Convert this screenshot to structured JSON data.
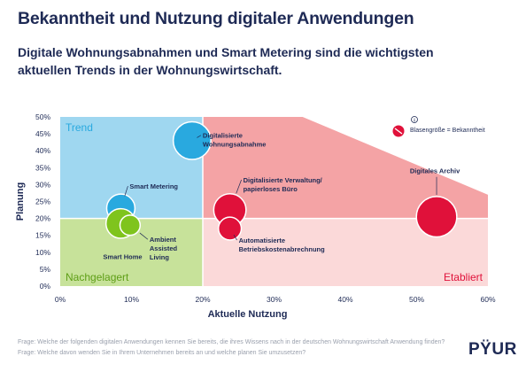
{
  "title": "Bekanntheit und Nutzung digitaler Anwendungen",
  "subtitle": "Digitale Wohnungsabnahmen und Smart Metering sind die wichtigsten aktuellen Trends in der Wohnungswirtschaft.",
  "footnotes": [
    "Frage: Welche der folgenden digitalen Anwendungen kennen Sie bereits, die ihres Wissens nach in der deutschen Wohnungswirtschaft Anwendung finden?",
    "Frage: Welche davon wenden Sie in Ihrem Unternehmen bereits an und welche planen Sie umzusetzen?"
  ],
  "logo": "PŸUR",
  "colors": {
    "trend": "#9fd7f0",
    "nachgelagert": "#c7e29a",
    "etabliert": "#f4a3a5",
    "etabliert_light": "#fbd9d9",
    "bubble_red": "#e0113a",
    "bubble_green": "#7fc41d",
    "bubble_blue": "#29a9df",
    "text_dark": "#1e2a55"
  },
  "chart_data": {
    "type": "bubble",
    "xlabel": "Aktuelle Nutzung",
    "ylabel": "Planung",
    "xlim": [
      0,
      60
    ],
    "ylim": [
      0,
      50
    ],
    "xticks": [
      "0%",
      "10%",
      "20%",
      "30%",
      "40%",
      "50%",
      "60%"
    ],
    "yticks": [
      "0%",
      "5%",
      "10%",
      "15%",
      "20%",
      "25%",
      "30%",
      "35%",
      "40%",
      "45%",
      "50%"
    ],
    "quadrants": [
      {
        "label": "Trend",
        "x": [
          0,
          20
        ],
        "y": [
          20,
          50
        ],
        "color": "trend"
      },
      {
        "label": "Nachgelagert",
        "x": [
          0,
          20
        ],
        "y": [
          0,
          20
        ],
        "color": "nachgelagert"
      },
      {
        "label": "Etabliert",
        "x": [
          20,
          60
        ],
        "y": [
          0,
          20
        ],
        "color": "etabliert_light"
      }
    ],
    "etabliert_upper_polygon": [
      [
        20,
        20
      ],
      [
        20,
        50
      ],
      [
        34,
        50
      ],
      [
        60,
        27
      ],
      [
        60,
        20
      ]
    ],
    "legend": {
      "text": "Blasengröße = Bekanntheit",
      "info": "i"
    },
    "series": [
      {
        "name": "Digitalisierte Wohnungsabnahme",
        "x": 18.5,
        "y": 43,
        "size": 2.8,
        "color": "bubble_blue"
      },
      {
        "name": "Smart Metering",
        "x": 8.5,
        "y": 23,
        "size": 2.1,
        "color": "bubble_blue"
      },
      {
        "name": "Smart Home",
        "x": 8.5,
        "y": 18.5,
        "size": 2.2,
        "color": "bubble_green"
      },
      {
        "name": "Ambient Assisted Living",
        "x": 9.8,
        "y": 18,
        "size": 1.5,
        "color": "bubble_green"
      },
      {
        "name": "Digitalisierte Verwaltung/ papierloses Büro",
        "x": 23.8,
        "y": 22.5,
        "size": 2.4,
        "color": "bubble_red"
      },
      {
        "name": "Automatisierte Betriebskostenabrechnung",
        "x": 23.8,
        "y": 17,
        "size": 1.7,
        "color": "bubble_red"
      },
      {
        "name": "Digitales Archiv",
        "x": 52.8,
        "y": 20.5,
        "size": 3.0,
        "color": "bubble_red"
      }
    ]
  }
}
